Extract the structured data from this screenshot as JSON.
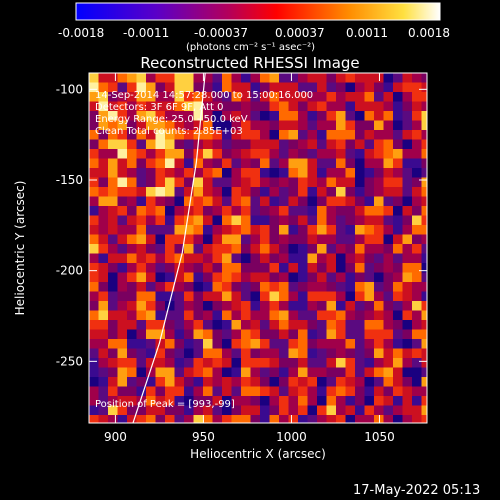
{
  "colorbar": {
    "ticks": [
      "-0.0018",
      "-0.0011",
      "-0.00037",
      "0.00037",
      "0.0011",
      "0.0018"
    ],
    "units_label": "(photons cm⁻² s⁻¹ asec⁻²)",
    "range": [
      -0.0018,
      0.0018
    ]
  },
  "chart_data": {
    "type": "heatmap",
    "title": "Reconstructed RHESSI Image",
    "xlabel": "Heliocentric X (arcsec)",
    "ylabel": "Heliocentric Y (arcsec)",
    "xlim": [
      885,
      1077
    ],
    "ylim": [
      -284,
      -91
    ],
    "x_ticks": [
      "900",
      "950",
      "1000",
      "1050"
    ],
    "y_ticks": [
      "-100",
      "-150",
      "-200",
      "-250"
    ],
    "x_tick_values": [
      900,
      950,
      1000,
      1050
    ],
    "y_tick_values": [
      -100,
      -150,
      -200,
      -250
    ],
    "annotations": [
      "14-Sep-2014 14:57:28.000 to 15:00:16.000",
      "Detectors: 3F 6F 9F, Att 0",
      "Energy Range: 25.0 - 50.0 keV",
      "Clean     Total counts: 2.85E+03"
    ],
    "peak_label": "Position of Peak = [993,-99]",
    "peak": [
      993,
      -99
    ],
    "limb_curve": [
      [
        910,
        -284
      ],
      [
        925,
        -240
      ],
      [
        938,
        -190
      ],
      [
        946,
        -140
      ],
      [
        951,
        -91
      ]
    ]
  },
  "footer": {
    "timestamp": "17-May-2022 05:13"
  }
}
